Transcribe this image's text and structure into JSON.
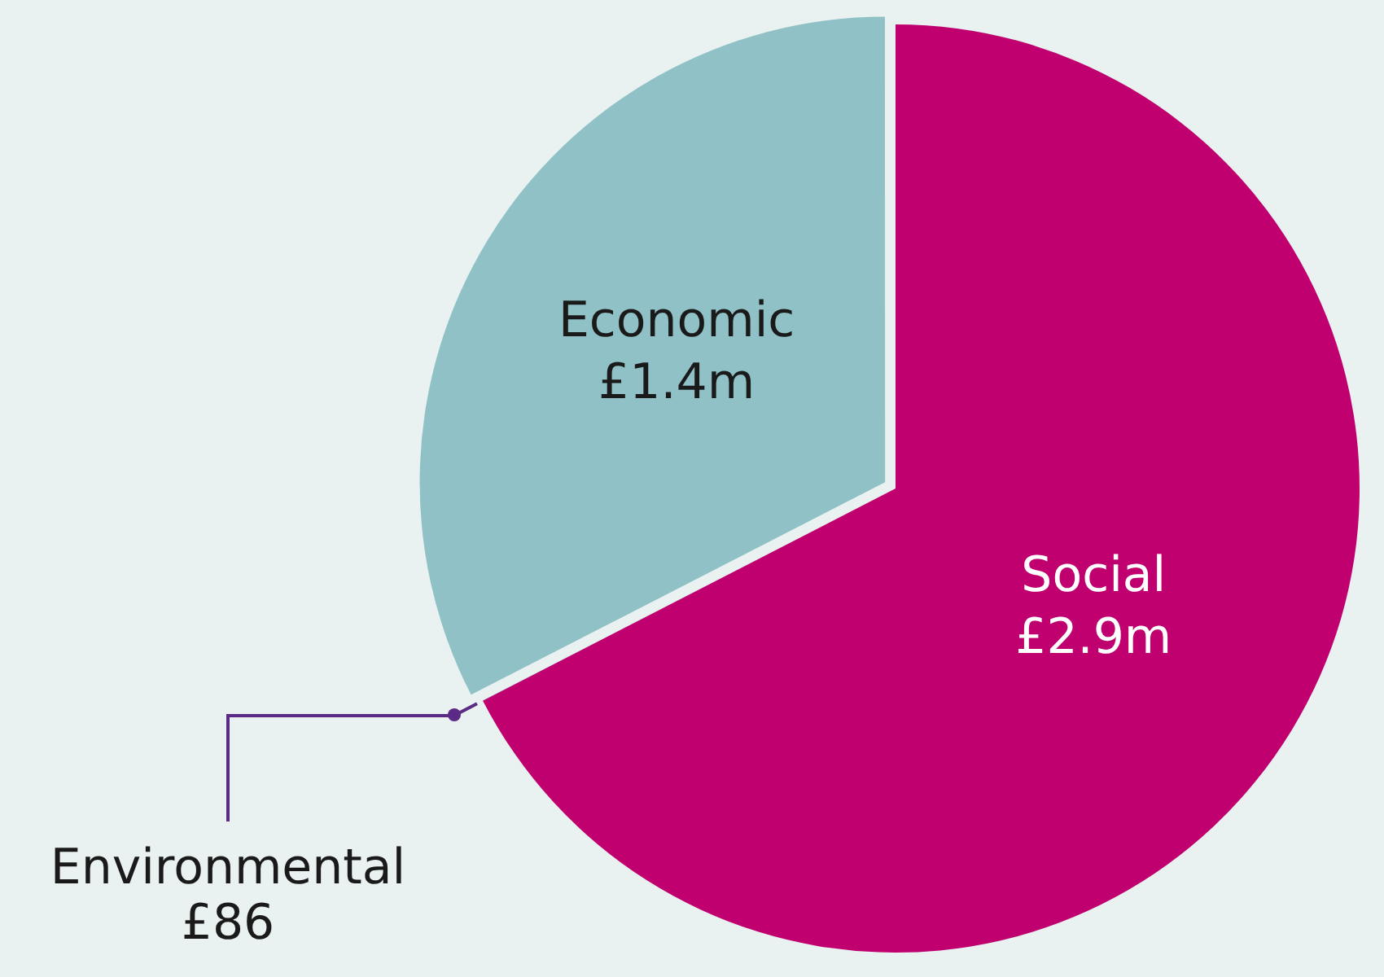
{
  "chart_data": {
    "type": "pie",
    "categories": [
      "Social",
      "Environmental",
      "Economic"
    ],
    "values": [
      2900000,
      86,
      1400000
    ],
    "value_labels": [
      "£2.9m",
      "£86",
      "£1.4m"
    ],
    "colors": [
      "#c0006f",
      "#5b2a86",
      "#8fc1c6"
    ],
    "legend": false
  }
}
